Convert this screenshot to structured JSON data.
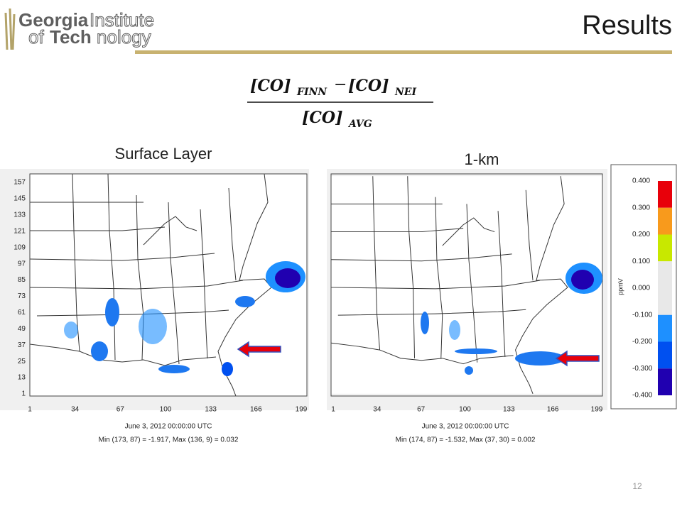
{
  "logo": {
    "line1a": "Georgia",
    "line1b": "Institute",
    "line2a": "of",
    "line2b": "Tech",
    "line2c": "nology"
  },
  "title": "Results",
  "formula": {
    "num_term1": "[CO]",
    "num_sub1": "FINN",
    "minus": "−",
    "num_term2": "[CO]",
    "num_sub2": "NEI",
    "den_term": "[CO]",
    "den_sub": "AVG"
  },
  "panels": [
    {
      "label": "Surface Layer",
      "yticks": [
        157,
        145,
        133,
        121,
        109,
        97,
        85,
        73,
        61,
        49,
        37,
        25,
        13,
        1
      ],
      "xticks": [
        1,
        34,
        67,
        100,
        133,
        166,
        199
      ],
      "date": "June 3, 2012 00:00:00 UTC",
      "stats": "Min (173, 87) = -1.917, Max (136, 9) = 0.032"
    },
    {
      "label": "1-km",
      "xticks": [
        1,
        34,
        67,
        100,
        133,
        166,
        199
      ],
      "date": "June 3, 2012 00:00:00 UTC",
      "stats": "Min (174, 87) = -1.532, Max (37, 30) = 0.002"
    }
  ],
  "colorbar": {
    "unit": "ppmV",
    "labels": [
      "0.400",
      "0.300",
      "0.200",
      "0.100",
      "0.000",
      "-0.100",
      "-0.200",
      "-0.300",
      "-0.400"
    ]
  },
  "page_number": 12
}
